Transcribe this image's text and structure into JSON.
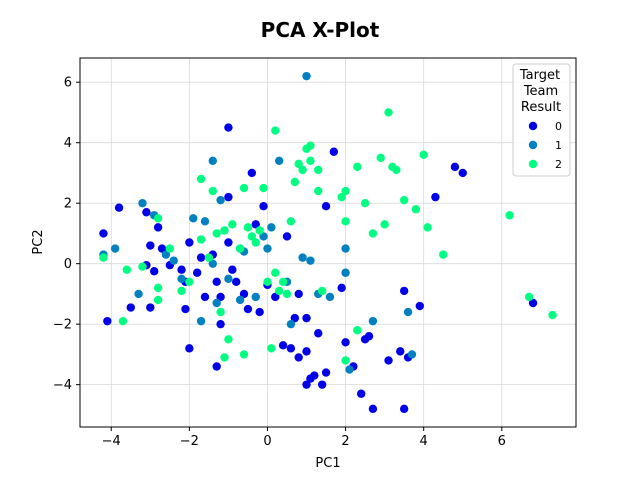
{
  "chart_data": {
    "type": "scatter",
    "title": "PCA X-Plot",
    "xlabel": "PC1",
    "ylabel": "PC2",
    "xlim": [
      -4.8,
      7.9
    ],
    "ylim": [
      -5.4,
      6.8
    ],
    "xticks": [
      -4,
      -2,
      0,
      2,
      4,
      6
    ],
    "yticks": [
      -4,
      -2,
      0,
      2,
      4,
      6
    ],
    "grid": true,
    "legend": {
      "title": [
        "Target",
        "Team",
        "Result"
      ],
      "placement": "top-right"
    },
    "series": [
      {
        "name": "0",
        "color": "#0000e8",
        "points": [
          [
            -4.2,
            1.0
          ],
          [
            -4.1,
            -1.9
          ],
          [
            -3.8,
            1.85
          ],
          [
            -3.5,
            -1.45
          ],
          [
            -3.1,
            1.7
          ],
          [
            -3.1,
            -0.05
          ],
          [
            -3.0,
            0.6
          ],
          [
            -2.9,
            -0.25
          ],
          [
            -3.0,
            -1.45
          ],
          [
            -2.8,
            1.2
          ],
          [
            -2.7,
            0.5
          ],
          [
            -2.5,
            -0.05
          ],
          [
            -2.2,
            -0.2
          ],
          [
            -2.1,
            -0.6
          ],
          [
            -2.1,
            -1.5
          ],
          [
            -2.0,
            0.7
          ],
          [
            -1.8,
            -0.3
          ],
          [
            -1.7,
            0.2
          ],
          [
            -1.6,
            -1.1
          ],
          [
            -1.4,
            0.3
          ],
          [
            -1.3,
            -3.4
          ],
          [
            -1.3,
            -0.6
          ],
          [
            -1.2,
            -1.1
          ],
          [
            -1.0,
            0.7
          ],
          [
            -1.0,
            2.2
          ],
          [
            -1.0,
            4.5
          ],
          [
            -0.9,
            -0.2
          ],
          [
            -0.8,
            -0.6
          ],
          [
            -0.6,
            -1.0
          ],
          [
            -0.5,
            -1.5
          ],
          [
            -0.4,
            3.0
          ],
          [
            -0.3,
            1.3
          ],
          [
            -0.2,
            -1.6
          ],
          [
            -0.1,
            1.9
          ],
          [
            0.0,
            -0.7
          ],
          [
            0.2,
            -1.1
          ],
          [
            0.4,
            -2.7
          ],
          [
            0.5,
            0.9
          ],
          [
            0.6,
            -2.8
          ],
          [
            0.7,
            -1.8
          ],
          [
            0.8,
            -3.1
          ],
          [
            0.8,
            -1.0
          ],
          [
            1.0,
            -1.8
          ],
          [
            1.0,
            -2.9
          ],
          [
            1.0,
            -4.0
          ],
          [
            1.1,
            -3.8
          ],
          [
            1.2,
            -3.7
          ],
          [
            1.3,
            -2.3
          ],
          [
            1.4,
            -4.0
          ],
          [
            1.5,
            -3.6
          ],
          [
            1.7,
            3.7
          ],
          [
            1.9,
            -0.8
          ],
          [
            2.0,
            -2.6
          ],
          [
            2.2,
            -3.4
          ],
          [
            2.4,
            -4.3
          ],
          [
            2.5,
            -2.5
          ],
          [
            2.6,
            -2.4
          ],
          [
            2.7,
            -4.8
          ],
          [
            3.1,
            -3.2
          ],
          [
            3.4,
            -2.9
          ],
          [
            3.5,
            -4.8
          ],
          [
            3.5,
            -0.9
          ],
          [
            3.6,
            -3.1
          ],
          [
            3.9,
            -1.4
          ],
          [
            4.3,
            2.2
          ],
          [
            4.8,
            3.2
          ],
          [
            5.0,
            3.0
          ],
          [
            6.8,
            -1.3
          ],
          [
            1.5,
            1.9
          ],
          [
            -2.0,
            -2.8
          ],
          [
            -1.2,
            -2.0
          ],
          [
            -0.7,
            0.5
          ]
        ]
      },
      {
        "name": "1",
        "color": "#0080c0",
        "points": [
          [
            -4.2,
            0.3
          ],
          [
            -3.9,
            0.5
          ],
          [
            -3.2,
            2.0
          ],
          [
            -3.3,
            -1.0
          ],
          [
            -2.9,
            1.6
          ],
          [
            -2.6,
            0.3
          ],
          [
            -2.4,
            0.1
          ],
          [
            -2.2,
            -0.5
          ],
          [
            -1.9,
            1.5
          ],
          [
            -1.7,
            -1.9
          ],
          [
            -1.6,
            1.4
          ],
          [
            -1.4,
            0.0
          ],
          [
            -1.4,
            3.4
          ],
          [
            -1.3,
            -1.3
          ],
          [
            -1.2,
            2.1
          ],
          [
            -1.0,
            -0.5
          ],
          [
            -0.7,
            -1.2
          ],
          [
            -0.6,
            0.4
          ],
          [
            -0.3,
            -1.1
          ],
          [
            0.0,
            0.5
          ],
          [
            0.1,
            1.2
          ],
          [
            0.3,
            3.4
          ],
          [
            0.5,
            -0.6
          ],
          [
            0.6,
            -2.0
          ],
          [
            0.9,
            0.2
          ],
          [
            1.0,
            6.2
          ],
          [
            1.1,
            0.1
          ],
          [
            1.3,
            -1.0
          ],
          [
            1.6,
            -1.1
          ],
          [
            2.0,
            -0.3
          ],
          [
            2.1,
            -3.5
          ],
          [
            2.0,
            0.5
          ],
          [
            2.7,
            -1.9
          ],
          [
            3.6,
            -1.6
          ],
          [
            3.7,
            -3.0
          ],
          [
            -0.1,
            0.9
          ]
        ]
      },
      {
        "name": "2",
        "color": "#00ff80",
        "points": [
          [
            -4.2,
            0.2
          ],
          [
            -3.7,
            -1.9
          ],
          [
            -3.6,
            -0.2
          ],
          [
            -3.2,
            -0.1
          ],
          [
            -2.8,
            1.5
          ],
          [
            -2.8,
            -0.8
          ],
          [
            -2.8,
            -1.2
          ],
          [
            -2.5,
            0.5
          ],
          [
            -2.2,
            -0.9
          ],
          [
            -2.0,
            -0.6
          ],
          [
            -1.7,
            2.8
          ],
          [
            -1.7,
            0.8
          ],
          [
            -1.5,
            0.2
          ],
          [
            -1.4,
            2.4
          ],
          [
            -1.3,
            1.0
          ],
          [
            -1.2,
            -1.6
          ],
          [
            -1.1,
            1.1
          ],
          [
            -1.1,
            -3.1
          ],
          [
            -1.0,
            -2.5
          ],
          [
            -0.9,
            1.3
          ],
          [
            -0.7,
            0.5
          ],
          [
            -0.6,
            2.5
          ],
          [
            -0.6,
            -3.0
          ],
          [
            -0.5,
            1.2
          ],
          [
            -0.3,
            0.7
          ],
          [
            -0.2,
            1.1
          ],
          [
            -0.1,
            2.5
          ],
          [
            0.0,
            -0.6
          ],
          [
            0.1,
            -2.8
          ],
          [
            0.2,
            -0.3
          ],
          [
            0.2,
            4.4
          ],
          [
            0.4,
            -0.6
          ],
          [
            0.5,
            -1.0
          ],
          [
            0.6,
            1.4
          ],
          [
            0.7,
            2.7
          ],
          [
            0.8,
            3.3
          ],
          [
            0.9,
            3.1
          ],
          [
            1.0,
            3.8
          ],
          [
            1.1,
            3.9
          ],
          [
            1.1,
            3.4
          ],
          [
            1.3,
            2.4
          ],
          [
            1.3,
            3.1
          ],
          [
            1.4,
            -0.9
          ],
          [
            1.9,
            2.2
          ],
          [
            2.0,
            2.4
          ],
          [
            2.0,
            1.4
          ],
          [
            2.0,
            -3.2
          ],
          [
            2.3,
            3.2
          ],
          [
            2.3,
            -2.2
          ],
          [
            2.5,
            2.0
          ],
          [
            2.7,
            1.0
          ],
          [
            2.9,
            3.5
          ],
          [
            3.0,
            1.3
          ],
          [
            3.1,
            5.0
          ],
          [
            3.2,
            3.2
          ],
          [
            3.3,
            3.1
          ],
          [
            3.5,
            2.1
          ],
          [
            3.8,
            1.8
          ],
          [
            4.0,
            3.6
          ],
          [
            4.1,
            1.2
          ],
          [
            4.5,
            0.3
          ],
          [
            6.2,
            1.6
          ],
          [
            6.7,
            -1.1
          ],
          [
            7.3,
            -1.7
          ],
          [
            0.3,
            -0.9
          ],
          [
            -0.4,
            0.9
          ]
        ]
      }
    ]
  }
}
